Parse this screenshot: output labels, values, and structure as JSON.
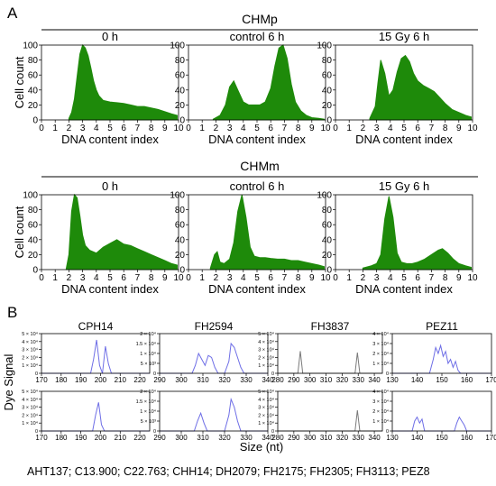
{
  "figure": {
    "panel_a_label": "A",
    "panel_b_label": "B",
    "footer": "AHT137; C13.900; C22.763; CHH14; DH2079; FH2175; FH2305; FH3113; PEZ8"
  },
  "colors": {
    "green": "#1e8a0a",
    "blue": "#6e6ee6",
    "gray": "#7a7a7a",
    "frame": "#000000"
  },
  "chart_data": [
    {
      "type": "area",
      "group": "CHMp",
      "title": "0 h",
      "xlabel": "DNA content index",
      "ylabel": "Cell count",
      "xlim": [
        0,
        10
      ],
      "ylim": [
        0,
        100
      ],
      "xticks": [
        0,
        1,
        2,
        3,
        4,
        5,
        6,
        7,
        8,
        9,
        10
      ],
      "yticks": [
        0,
        20,
        40,
        60,
        80,
        100
      ],
      "x": [
        2.0,
        2.2,
        2.4,
        2.6,
        2.8,
        3.0,
        3.2,
        3.4,
        3.6,
        3.8,
        4.0,
        4.2,
        4.5,
        5.0,
        5.5,
        6.0,
        6.5,
        7.0,
        7.5,
        8.0,
        8.5,
        9.0,
        9.5,
        9.9
      ],
      "y": [
        2,
        10,
        28,
        58,
        88,
        100,
        96,
        86,
        70,
        52,
        40,
        32,
        26,
        24,
        23,
        22,
        20,
        18,
        18,
        16,
        14,
        11,
        8,
        6
      ]
    },
    {
      "type": "area",
      "group": "CHMp",
      "title": "control 6 h",
      "xlabel": "DNA content index",
      "xlim": [
        0,
        10
      ],
      "ylim": [
        0,
        100
      ],
      "xticks": [
        0,
        1,
        2,
        3,
        4,
        5,
        6,
        7,
        8,
        9,
        10
      ],
      "yticks": [
        0,
        20,
        40,
        60,
        80,
        100
      ],
      "x": [
        1.8,
        2.3,
        2.7,
        3.0,
        3.3,
        3.6,
        4.0,
        4.4,
        4.8,
        5.2,
        5.6,
        6.0,
        6.3,
        6.6,
        6.9,
        7.2,
        7.5,
        7.8,
        8.2,
        8.6,
        9.0,
        9.5,
        9.9
      ],
      "y": [
        1,
        6,
        20,
        44,
        52,
        40,
        24,
        20,
        20,
        20,
        24,
        42,
        72,
        96,
        100,
        82,
        48,
        24,
        12,
        6,
        3,
        2,
        1
      ]
    },
    {
      "type": "area",
      "group": "CHMp",
      "title": "15 Gy 6 h",
      "xlabel": "DNA content index",
      "xlim": [
        0,
        10
      ],
      "ylim": [
        0,
        100
      ],
      "xticks": [
        0,
        1,
        2,
        3,
        4,
        5,
        6,
        7,
        8,
        9,
        10
      ],
      "yticks": [
        0,
        20,
        40,
        60,
        80,
        100
      ],
      "x": [
        2.5,
        2.9,
        3.1,
        3.3,
        3.6,
        3.9,
        4.2,
        4.5,
        4.8,
        5.1,
        5.4,
        5.7,
        6.0,
        6.4,
        6.8,
        7.2,
        7.6,
        8.0,
        8.5,
        9.0,
        9.5,
        9.9
      ],
      "y": [
        2,
        18,
        50,
        80,
        62,
        32,
        40,
        64,
        82,
        86,
        78,
        62,
        52,
        46,
        42,
        38,
        30,
        22,
        14,
        10,
        6,
        4
      ]
    },
    {
      "type": "area",
      "group": "CHMm",
      "title": "0 h",
      "xlabel": "DNA content index",
      "ylabel": "Cell count",
      "xlim": [
        0,
        10
      ],
      "ylim": [
        0,
        100
      ],
      "xticks": [
        0,
        1,
        2,
        3,
        4,
        5,
        6,
        7,
        8,
        9,
        10
      ],
      "yticks": [
        0,
        20,
        40,
        60,
        80,
        100
      ],
      "x": [
        1.8,
        2.0,
        2.2,
        2.4,
        2.6,
        2.8,
        3.0,
        3.2,
        3.5,
        4.0,
        4.5,
        5.0,
        5.5,
        6.0,
        6.5,
        7.0,
        7.5,
        8.0,
        8.5,
        9.0,
        9.5,
        9.9
      ],
      "y": [
        1,
        20,
        78,
        100,
        96,
        72,
        46,
        32,
        26,
        22,
        30,
        35,
        40,
        34,
        32,
        28,
        24,
        20,
        16,
        12,
        8,
        6
      ]
    },
    {
      "type": "area",
      "group": "CHMm",
      "title": "control 6 h",
      "xlabel": "DNA content index",
      "xlim": [
        0,
        10
      ],
      "ylim": [
        0,
        100
      ],
      "xticks": [
        0,
        1,
        2,
        3,
        4,
        5,
        6,
        7,
        8,
        9,
        10
      ],
      "yticks": [
        0,
        20,
        40,
        60,
        80,
        100
      ],
      "x": [
        1.6,
        1.9,
        2.1,
        2.3,
        2.6,
        3.0,
        3.3,
        3.6,
        3.9,
        4.2,
        4.5,
        4.8,
        5.2,
        5.6,
        6.0,
        6.5,
        7.0,
        7.5,
        8.0,
        8.5,
        9.0,
        9.5,
        9.9
      ],
      "y": [
        2,
        20,
        24,
        10,
        8,
        14,
        36,
        78,
        100,
        70,
        30,
        18,
        16,
        16,
        15,
        14,
        14,
        12,
        12,
        10,
        8,
        6,
        4
      ]
    },
    {
      "type": "area",
      "group": "CHMm",
      "title": "15 Gy 6 h",
      "xlabel": "DNA content index",
      "xlim": [
        0,
        10
      ],
      "ylim": [
        0,
        100
      ],
      "xticks": [
        0,
        1,
        2,
        3,
        4,
        5,
        6,
        7,
        8,
        9,
        10
      ],
      "yticks": [
        0,
        20,
        40,
        60,
        80,
        100
      ],
      "x": [
        2.0,
        2.6,
        3.0,
        3.3,
        3.6,
        3.9,
        4.2,
        4.5,
        4.8,
        5.2,
        5.6,
        6.0,
        6.5,
        7.0,
        7.5,
        7.8,
        8.2,
        8.6,
        9.0,
        9.5,
        9.9
      ],
      "y": [
        2,
        5,
        8,
        20,
        68,
        98,
        70,
        22,
        10,
        8,
        8,
        10,
        14,
        20,
        26,
        28,
        22,
        14,
        8,
        5,
        3
      ]
    },
    {
      "type": "line",
      "title": "CPH14",
      "ylabel": "Dye Signal",
      "color": "blue",
      "xlim": [
        170,
        225
      ],
      "ylim": [
        0,
        50000
      ],
      "xticks": [
        170,
        180,
        190,
        200,
        210,
        220
      ],
      "yticks": [
        0,
        10000,
        20000,
        30000,
        40000,
        50000
      ],
      "yticklabels": [
        "0",
        "1 × 10⁴",
        "2 × 10⁴",
        "3 × 10⁴",
        "4 × 10⁴",
        "5 × 10⁴"
      ],
      "x": [
        170,
        195,
        196.5,
        198,
        199.5,
        201,
        202.5,
        204,
        205.5,
        207,
        225
      ],
      "y": [
        0,
        0,
        18000,
        42000,
        10000,
        0,
        34000,
        12000,
        0,
        0,
        0
      ]
    },
    {
      "type": "line",
      "title": "FH2594",
      "color": "blue",
      "xlim": [
        290,
        340
      ],
      "ylim": [
        0,
        20000
      ],
      "xticks": [
        290,
        300,
        310,
        320,
        330,
        340
      ],
      "yticks": [
        0,
        5000,
        10000,
        15000,
        20000
      ],
      "yticklabels": [
        "0",
        "5 × 10³",
        "1 × 10⁴",
        "1.5 × 10⁴",
        "2 × 10⁴"
      ],
      "x": [
        290,
        305,
        306.5,
        308,
        309.5,
        311,
        312.5,
        314,
        315.5,
        317,
        320,
        322,
        323,
        324.5,
        326,
        327.5,
        329,
        340
      ],
      "y": [
        0,
        0,
        4000,
        10000,
        7000,
        4000,
        9000,
        8000,
        3000,
        0,
        0,
        6000,
        15000,
        13000,
        8000,
        3000,
        0,
        0
      ]
    },
    {
      "type": "line",
      "title": "FH3837",
      "color": "gray",
      "xlim": [
        280,
        345
      ],
      "ylim": [
        0,
        50000
      ],
      "xticks": [
        280,
        290,
        300,
        310,
        320,
        330,
        340
      ],
      "yticks": [
        0,
        10000,
        20000,
        30000,
        40000,
        50000
      ],
      "yticklabels": [
        "0",
        "1 × 10⁴",
        "2 × 10⁴",
        "3 × 10⁴",
        "4 × 10⁴",
        "5 × 10⁴"
      ],
      "x": [
        280,
        292.5,
        294,
        295.5,
        328,
        329.5,
        331,
        345
      ],
      "y": [
        0,
        0,
        28000,
        0,
        0,
        26000,
        0,
        0
      ]
    },
    {
      "type": "line",
      "title": "PEZ11",
      "color": "blue",
      "xlim": [
        130,
        170
      ],
      "ylim": [
        0,
        40000
      ],
      "xticks": [
        130,
        140,
        150,
        160,
        170
      ],
      "yticks": [
        0,
        10000,
        20000,
        30000,
        40000
      ],
      "yticklabels": [
        "0",
        "1 × 10⁴",
        "2 × 10⁴",
        "3 × 10⁴",
        "4 × 10⁴"
      ],
      "x": [
        130,
        145,
        146.5,
        147.5,
        148.5,
        149.5,
        150.5,
        151.5,
        152.5,
        153.5,
        154.5,
        155.5,
        156.5,
        157.5,
        158.5,
        170
      ],
      "y": [
        0,
        0,
        14000,
        26000,
        20000,
        28000,
        17000,
        22000,
        10000,
        14000,
        6000,
        12000,
        3000,
        0,
        0,
        0
      ]
    },
    {
      "type": "line",
      "color": "blue",
      "xlim": [
        170,
        225
      ],
      "ylim": [
        0,
        50000
      ],
      "xticks": [
        170,
        180,
        190,
        200,
        210,
        220
      ],
      "yticks": [
        0,
        10000,
        20000,
        30000,
        40000,
        50000
      ],
      "yticklabels": [
        "0",
        "1 × 10⁴",
        "2 × 10⁴",
        "3 × 10⁴",
        "4 × 10⁴",
        "5 × 10⁴"
      ],
      "x": [
        170,
        196,
        197.5,
        199,
        200.5,
        202,
        225
      ],
      "y": [
        0,
        0,
        20000,
        36000,
        8000,
        0,
        0
      ]
    },
    {
      "type": "line",
      "color": "blue",
      "xlim": [
        290,
        340
      ],
      "ylim": [
        0,
        20000
      ],
      "xticks": [
        290,
        300,
        310,
        320,
        330,
        340
      ],
      "yticks": [
        0,
        5000,
        10000,
        15000,
        20000
      ],
      "yticklabels": [
        "0",
        "5 × 10³",
        "1 × 10⁴",
        "1.5 × 10⁴",
        "2 × 10⁴"
      ],
      "x": [
        290,
        306,
        307.5,
        309,
        310.5,
        312,
        320,
        322,
        323,
        324.5,
        326,
        327.5,
        340
      ],
      "y": [
        0,
        0,
        5000,
        9000,
        4000,
        0,
        0,
        8000,
        16000,
        12000,
        5000,
        0,
        0
      ]
    },
    {
      "type": "line",
      "color": "gray",
      "xlim": [
        280,
        345
      ],
      "ylim": [
        0,
        50000
      ],
      "xticks": [
        280,
        290,
        300,
        310,
        320,
        330,
        340
      ],
      "yticks": [
        0,
        10000,
        20000,
        30000,
        40000,
        50000
      ],
      "yticklabels": [
        "0",
        "1 × 10⁴",
        "2 × 10⁴",
        "3 × 10⁴",
        "4 × 10⁴",
        "5 × 10⁴"
      ],
      "x": [
        280,
        328,
        329.5,
        331,
        345
      ],
      "y": [
        0,
        0,
        26000,
        0,
        0
      ]
    },
    {
      "type": "line",
      "color": "blue",
      "xlim": [
        130,
        170
      ],
      "ylim": [
        0,
        40000
      ],
      "xticks": [
        130,
        140,
        150,
        160,
        170
      ],
      "yticks": [
        0,
        10000,
        20000,
        30000,
        40000
      ],
      "yticklabels": [
        "0",
        "1 × 10⁴",
        "2 × 10⁴",
        "3 × 10⁴",
        "4 × 10⁴"
      ],
      "x": [
        130,
        138,
        139,
        140,
        141,
        142,
        143,
        155,
        156,
        157,
        158,
        159,
        160,
        170
      ],
      "y": [
        0,
        0,
        10000,
        14000,
        8000,
        12000,
        0,
        0,
        8000,
        14000,
        10000,
        6000,
        0,
        0
      ]
    }
  ],
  "layout_text": {
    "group1_title": "CHMp",
    "group2_title": "CHMm",
    "panel_b_xlabel": "Size (nt)"
  }
}
